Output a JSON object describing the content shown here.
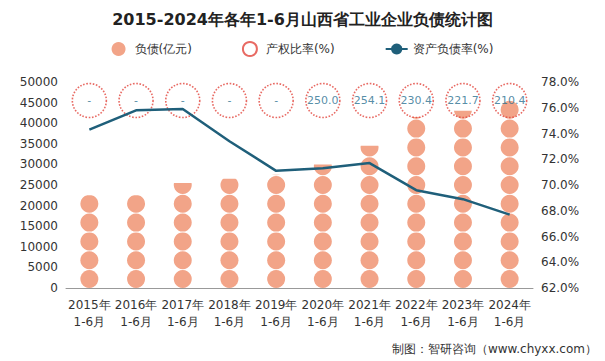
{
  "chart_data": {
    "type": "bar",
    "title": "2015-2024年各年1-6月山西省工业企业负债统计图",
    "annotation": "制图：智研咨询（www.chyxx.com）",
    "categories": [
      "2015年\n1-6月",
      "2016年\n1-6月",
      "2017年\n1-6月",
      "2018年\n1-6月",
      "2019年\n1-6月",
      "2020年\n1-6月",
      "2021年\n1-6月",
      "2022年\n1-6月",
      "2023年\n1-6月",
      "2024年\n1-6月"
    ],
    "series": [
      {
        "name": "负债(亿元)",
        "type": "bar",
        "marker": "circle",
        "color": "#f2a488",
        "values": [
          22500,
          22500,
          25500,
          26500,
          27500,
          30000,
          34500,
          41500,
          43000,
          45500
        ]
      },
      {
        "name": "产权比率(%)",
        "type": "scatter",
        "marker": "circle",
        "line_style": "dotted",
        "color": "#e2453c",
        "data_labels": true,
        "values": [
          null,
          null,
          null,
          null,
          null,
          250.0,
          254.1,
          230.4,
          221.7,
          210.4
        ],
        "value_labels": [
          "-",
          "-",
          "-",
          "-",
          "-",
          "250.0",
          "254.1",
          "230.4",
          "221.7",
          "210.4"
        ]
      },
      {
        "name": "资产负债率(%)",
        "type": "line",
        "axis": "y2",
        "line_style": "solid",
        "color": "#1f5f7a",
        "values": [
          74.3,
          75.8,
          75.9,
          73.4,
          71.1,
          71.3,
          71.7,
          69.6,
          68.9,
          67.7
        ]
      }
    ],
    "ylim": [
      0,
      50000
    ],
    "yticks": [
      0,
      5000,
      10000,
      15000,
      20000,
      25000,
      30000,
      35000,
      40000,
      45000,
      50000
    ],
    "y2lim": [
      62,
      78
    ],
    "y2ticks": [
      {
        "value": 62,
        "label": "62.0%"
      },
      {
        "value": 64,
        "label": "64.0%"
      },
      {
        "value": 66,
        "label": "66.0%"
      },
      {
        "value": 68,
        "label": "68.0%"
      },
      {
        "value": 70,
        "label": "70.0%"
      },
      {
        "value": 72,
        "label": "72.0%"
      },
      {
        "value": 74,
        "label": "74.0%"
      },
      {
        "value": 76,
        "label": "76.0%"
      },
      {
        "value": 78,
        "label": "78.0%"
      }
    ],
    "grid": false,
    "legend": "top"
  }
}
